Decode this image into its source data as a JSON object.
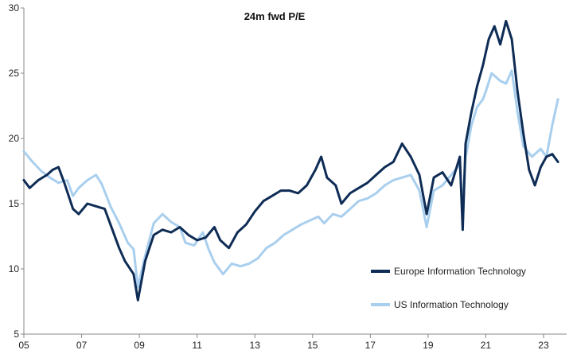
{
  "chart_data": {
    "type": "line",
    "title": "24m fwd P/E",
    "xlabel": "",
    "ylabel": "",
    "xlim": [
      2005.0,
      2023.8
    ],
    "ylim": [
      5,
      30
    ],
    "y_ticks": [
      5,
      10,
      15,
      20,
      25,
      30
    ],
    "x_ticks": [
      {
        "value": 2005,
        "label": "05"
      },
      {
        "value": 2007,
        "label": "07"
      },
      {
        "value": 2009,
        "label": "09"
      },
      {
        "value": 2011,
        "label": "11"
      },
      {
        "value": 2013,
        "label": "13"
      },
      {
        "value": 2015,
        "label": "15"
      },
      {
        "value": 2017,
        "label": "17"
      },
      {
        "value": 2019,
        "label": "19"
      },
      {
        "value": 2021,
        "label": "21"
      },
      {
        "value": 2023,
        "label": "23"
      }
    ],
    "grid": false,
    "legend_position": "bottom-right",
    "series": [
      {
        "name": "US Information Technology",
        "color": "#a9cfee",
        "x": [
          2005.0,
          2005.3,
          2005.6,
          2005.9,
          2006.2,
          2006.5,
          2006.7,
          2006.9,
          2007.2,
          2007.5,
          2007.7,
          2008.0,
          2008.3,
          2008.6,
          2008.8,
          2008.95,
          2009.2,
          2009.5,
          2009.8,
          2010.1,
          2010.4,
          2010.6,
          2010.9,
          2011.2,
          2011.4,
          2011.6,
          2011.9,
          2012.2,
          2012.5,
          2012.8,
          2013.1,
          2013.4,
          2013.7,
          2014.0,
          2014.3,
          2014.6,
          2014.9,
          2015.2,
          2015.4,
          2015.7,
          2016.0,
          2016.3,
          2016.6,
          2016.9,
          2017.2,
          2017.5,
          2017.8,
          2018.1,
          2018.4,
          2018.7,
          2018.95,
          2019.2,
          2019.5,
          2019.8,
          2020.1,
          2020.2,
          2020.3,
          2020.5,
          2020.7,
          2020.9,
          2021.0,
          2021.2,
          2021.5,
          2021.7,
          2021.9,
          2022.1,
          2022.3,
          2022.6,
          2022.9,
          2023.1,
          2023.3,
          2023.5
        ],
        "values": [
          19.0,
          18.2,
          17.5,
          17.0,
          16.6,
          16.8,
          15.6,
          16.2,
          16.8,
          17.2,
          16.5,
          14.8,
          13.5,
          12.0,
          11.5,
          8.6,
          11.0,
          13.5,
          14.2,
          13.6,
          13.2,
          12.0,
          11.8,
          12.8,
          11.5,
          10.5,
          9.6,
          10.4,
          10.2,
          10.4,
          10.8,
          11.6,
          12.0,
          12.6,
          13.0,
          13.4,
          13.7,
          14.0,
          13.5,
          14.2,
          14.0,
          14.6,
          15.2,
          15.4,
          15.8,
          16.4,
          16.8,
          17.0,
          17.2,
          16.0,
          13.2,
          16.0,
          16.4,
          17.2,
          18.0,
          14.5,
          18.5,
          21.0,
          22.4,
          23.0,
          23.6,
          25.0,
          24.4,
          24.2,
          25.2,
          22.0,
          19.4,
          18.6,
          19.2,
          18.6,
          21.0,
          23.0
        ]
      },
      {
        "name": "Europe Information Technology",
        "color": "#0e2c55",
        "x": [
          2005.0,
          2005.2,
          2005.5,
          2005.8,
          2006.0,
          2006.2,
          2006.4,
          2006.7,
          2006.9,
          2007.2,
          2007.5,
          2007.8,
          2008.0,
          2008.3,
          2008.5,
          2008.8,
          2008.95,
          2009.2,
          2009.5,
          2009.8,
          2010.1,
          2010.4,
          2010.7,
          2011.0,
          2011.3,
          2011.6,
          2011.8,
          2012.1,
          2012.4,
          2012.7,
          2013.0,
          2013.3,
          2013.6,
          2013.9,
          2014.2,
          2014.5,
          2014.8,
          2015.1,
          2015.3,
          2015.5,
          2015.8,
          2016.0,
          2016.3,
          2016.6,
          2016.9,
          2017.2,
          2017.5,
          2017.8,
          2018.1,
          2018.4,
          2018.7,
          2018.95,
          2019.2,
          2019.5,
          2019.8,
          2020.1,
          2020.2,
          2020.3,
          2020.5,
          2020.7,
          2020.9,
          2021.1,
          2021.3,
          2021.5,
          2021.7,
          2021.9,
          2022.1,
          2022.3,
          2022.5,
          2022.7,
          2022.9,
          2023.1,
          2023.3,
          2023.5
        ],
        "values": [
          16.8,
          16.2,
          16.8,
          17.2,
          17.6,
          17.8,
          16.6,
          14.6,
          14.2,
          15.0,
          14.8,
          14.6,
          13.4,
          11.6,
          10.6,
          9.6,
          7.6,
          10.6,
          12.6,
          13.0,
          12.8,
          13.2,
          12.6,
          12.2,
          12.4,
          13.2,
          12.2,
          11.6,
          12.8,
          13.4,
          14.4,
          15.2,
          15.6,
          16.0,
          16.0,
          15.8,
          16.4,
          17.6,
          18.6,
          17.0,
          16.4,
          15.0,
          15.8,
          16.2,
          16.6,
          17.2,
          17.8,
          18.2,
          19.6,
          18.6,
          17.2,
          14.2,
          17.0,
          17.4,
          16.4,
          18.6,
          13.0,
          19.6,
          22.0,
          24.0,
          25.6,
          27.6,
          28.6,
          27.2,
          29.0,
          27.6,
          23.6,
          20.4,
          17.6,
          16.4,
          17.8,
          18.6,
          18.8,
          18.2
        ]
      }
    ]
  }
}
